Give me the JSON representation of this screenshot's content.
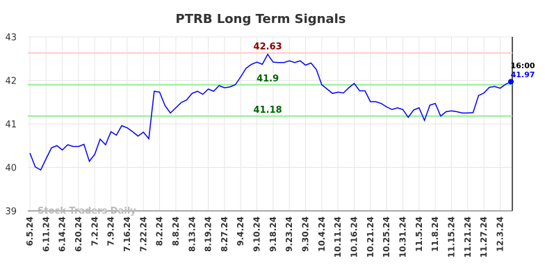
{
  "chart_data": {
    "type": "line",
    "title": "PTRB Long Term Signals",
    "x": [
      "6.5.24",
      null,
      null,
      "6.11.24",
      null,
      null,
      "6.14.24",
      null,
      null,
      "6.20.24",
      null,
      null,
      "7.2.24",
      null,
      null,
      "7.9.24",
      null,
      null,
      "7.16.24",
      null,
      null,
      "7.22.24",
      null,
      null,
      "8.2.24",
      null,
      null,
      "8.8.24",
      null,
      null,
      "8.13.24",
      null,
      null,
      "8.19.24",
      null,
      null,
      "8.27.24",
      null,
      null,
      "9.4.24",
      null,
      null,
      "9.10.24",
      null,
      null,
      "9.18.24",
      null,
      null,
      "9.23.24",
      null,
      null,
      "9.30.24",
      null,
      null,
      "10.4.24",
      null,
      null,
      "10.11.24",
      null,
      null,
      "10.16.24",
      null,
      null,
      "10.21.24",
      null,
      null,
      "10.25.24",
      null,
      null,
      "10.31.24",
      null,
      null,
      "11.5.24",
      null,
      null,
      "11.8.24",
      null,
      null,
      "11.15.24",
      null,
      null,
      "11.21.24",
      null,
      null,
      "11.27.24",
      null,
      null,
      "12.3.24",
      null,
      null
    ],
    "series": [
      {
        "color": "#0000ff",
        "values": [
          40.33,
          40.01,
          39.94,
          40.2,
          40.45,
          40.5,
          40.4,
          40.52,
          40.48,
          40.48,
          40.53,
          40.14,
          40.3,
          40.65,
          40.52,
          40.82,
          40.74,
          40.96,
          40.91,
          40.82,
          40.72,
          40.81,
          40.66,
          41.75,
          41.73,
          41.42,
          41.25,
          41.37,
          41.49,
          41.55,
          41.7,
          41.75,
          41.68,
          41.8,
          41.75,
          41.88,
          41.83,
          41.85,
          41.9,
          42.08,
          42.28,
          42.37,
          42.42,
          42.37,
          42.6,
          42.42,
          42.41,
          42.41,
          42.45,
          42.41,
          42.45,
          42.35,
          42.4,
          42.25,
          41.9,
          41.8,
          41.7,
          41.73,
          41.71,
          41.83,
          41.93,
          41.76,
          41.76,
          41.51,
          41.51,
          41.47,
          41.39,
          41.33,
          41.37,
          41.33,
          41.15,
          41.32,
          41.37,
          41.08,
          41.43,
          41.47,
          41.18,
          41.28,
          41.3,
          41.28,
          41.25,
          41.25,
          41.26,
          41.65,
          41.71,
          41.84,
          41.86,
          41.82,
          41.91,
          41.97
        ]
      }
    ],
    "ylim": [
      39,
      43
    ],
    "yticks": [
      39,
      40,
      41,
      42,
      43
    ],
    "grid": true,
    "hlines": [
      {
        "value": 42.63,
        "color": "#ffcccc",
        "label_color": "#8b0000"
      },
      {
        "value": 41.9,
        "color": "#90ee90",
        "label_color": "#006400"
      },
      {
        "value": 41.18,
        "color": "#90ee90",
        "label_color": "#006400"
      }
    ],
    "last_time": "16:00",
    "watermark": "Stock Traders Daily"
  }
}
